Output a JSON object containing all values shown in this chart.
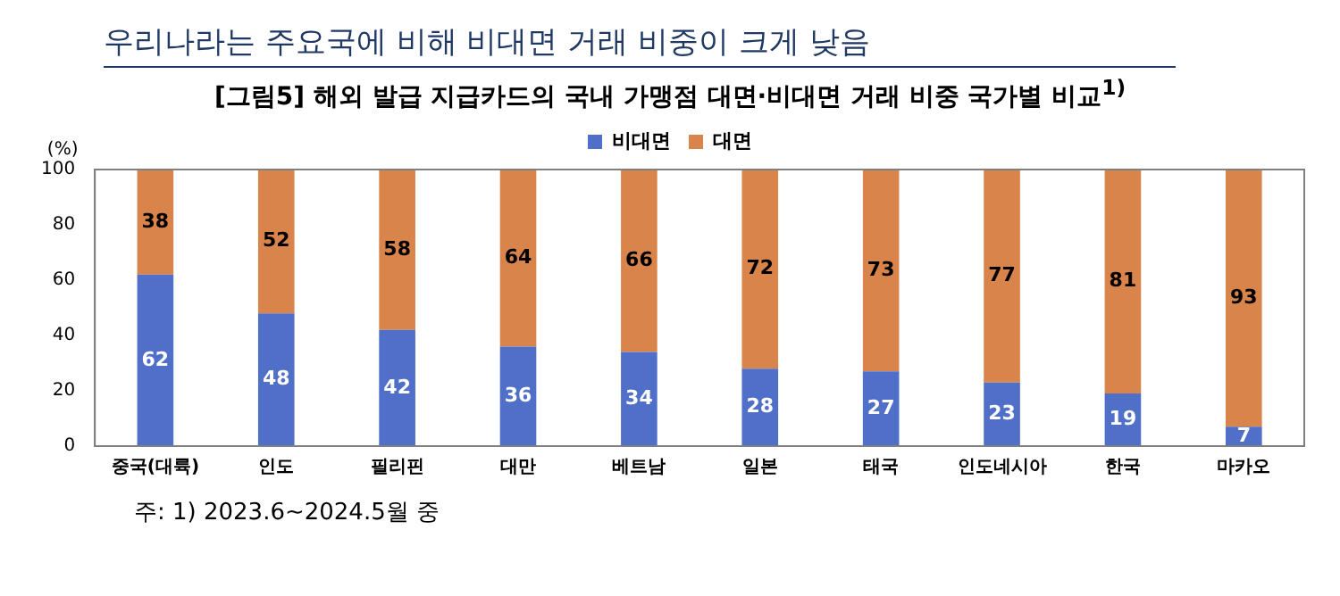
{
  "chart_data": {
    "type": "bar",
    "title": "우리나라는 주요국에 비해 비대면 거래 비중이 크게 낮음",
    "subtitle": "[그림5] 해외 발급 지급카드의 국내 가맹점 대면·비대면 거래 비중 국가별 비교$^{1)}$",
    "ylabel": "(%)",
    "categories": [
      "중국(대륙)",
      "인도",
      "필리핀",
      "대만",
      "베트남",
      "일본",
      "태국",
      "인도네시아",
      "한국",
      "마카오"
    ],
    "series": [
      {
        "name": "비대면",
        "color": "#4f6fc8",
        "values": [
          62,
          48,
          42,
          36,
          34,
          28,
          27,
          23,
          19,
          7
        ]
      },
      {
        "name": "대면",
        "color": "#d8844a",
        "values": [
          38,
          52,
          58,
          64,
          66,
          72,
          73,
          77,
          81,
          93
        ]
      }
    ],
    "stacked": true,
    "ylim": [
      0,
      100
    ],
    "yticks": [
      0,
      20,
      40,
      60,
      80,
      100
    ],
    "grid": false,
    "legend": "top",
    "data_labels": true,
    "annotations": [
      "주: 1) 2023.6~2024.5월 중"
    ]
  }
}
